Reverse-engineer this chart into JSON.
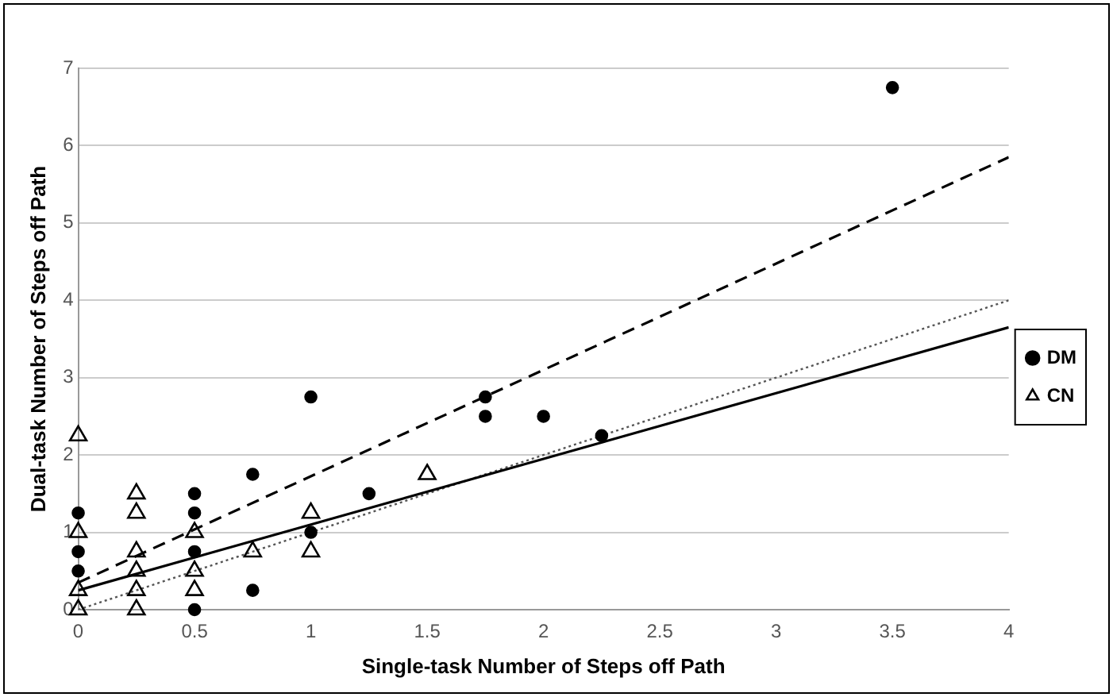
{
  "chart_data": {
    "type": "scatter",
    "xlabel": "Single-task Number of Steps off Path",
    "ylabel": "Dual-task Number of Steps off Path",
    "xlim": [
      0,
      4
    ],
    "xticks": [
      0,
      0.5,
      1,
      1.5,
      2,
      2.5,
      3,
      3.5,
      4
    ],
    "ylim": [
      0,
      7
    ],
    "yticks": [
      0,
      1,
      2,
      3,
      4,
      5,
      6,
      7
    ],
    "grid": "y",
    "legend": "right",
    "series": [
      {
        "name": "DM",
        "color": "#000000",
        "marker": "circle",
        "x": [
          0,
          0,
          0,
          0.5,
          0.5,
          0.5,
          0.5,
          0.75,
          0.75,
          1,
          1,
          1.25,
          1.75,
          1.75,
          2,
          2.25,
          3.5
        ],
        "values": [
          1.25,
          0.75,
          0.5,
          1.5,
          1.25,
          0.75,
          0,
          1.75,
          0.25,
          2.75,
          1,
          1.5,
          2.75,
          2.5,
          2.5,
          2.25,
          6.75
        ]
      },
      {
        "name": "CN",
        "color": "#000000",
        "marker": "triangle",
        "x": [
          0,
          0,
          0,
          0,
          0.25,
          0.25,
          0.25,
          0.25,
          0.25,
          0.25,
          0.5,
          0.5,
          0.5,
          0.75,
          1,
          1,
          1.5
        ],
        "values": [
          2.25,
          1,
          0.25,
          0,
          1.5,
          1.25,
          0.75,
          0.5,
          0.25,
          0,
          1,
          0.5,
          0.25,
          0.75,
          1.25,
          0.75,
          1.75
        ]
      },
      {
        "type": "line",
        "color": "#000000",
        "line_style": "dashed",
        "x": [
          0,
          4
        ],
        "values": [
          0.35,
          5.85
        ]
      },
      {
        "type": "line",
        "color": "#000000",
        "line_style": "solid",
        "x": [
          0,
          4
        ],
        "values": [
          0.25,
          3.65
        ]
      },
      {
        "type": "line",
        "color": "#555555",
        "line_style": "dotted",
        "x": [
          0,
          4
        ],
        "values": [
          0,
          4
        ]
      }
    ]
  }
}
